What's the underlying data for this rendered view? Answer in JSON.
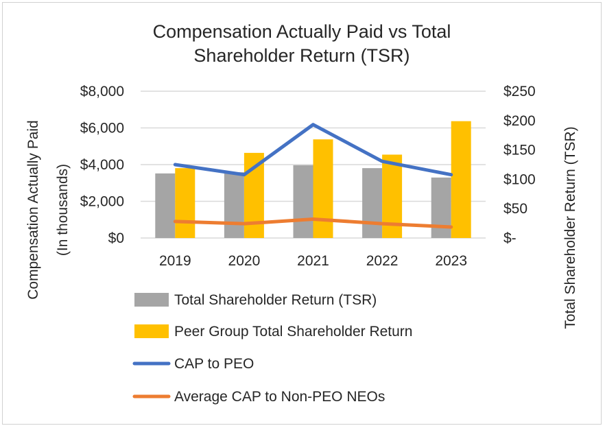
{
  "chart_data": {
    "type": "bar",
    "title_lines": [
      "Compensation Actually Paid vs Total",
      "Shareholder Return (TSR)"
    ],
    "categories": [
      "2019",
      "2020",
      "2021",
      "2022",
      "2023"
    ],
    "y_left": {
      "label_lines": [
        "Compensation Actually Paid",
        "(In thousands)"
      ],
      "range": [
        0,
        8000
      ],
      "ticks": [
        {
          "value": 0,
          "label": "$0"
        },
        {
          "value": 2000,
          "label": "$2,000"
        },
        {
          "value": 4000,
          "label": "$4,000"
        },
        {
          "value": 6000,
          "label": "$6,000"
        },
        {
          "value": 8000,
          "label": "$8,000"
        }
      ]
    },
    "y_right": {
      "label": "Total Shareholder Return (TSR)",
      "range": [
        0,
        250
      ],
      "ticks": [
        {
          "value": 0,
          "label": "$-"
        },
        {
          "value": 50,
          "label": "$50"
        },
        {
          "value": 100,
          "label": "$100"
        },
        {
          "value": 150,
          "label": "$150"
        },
        {
          "value": 200,
          "label": "$200"
        },
        {
          "value": 250,
          "label": "$250"
        }
      ]
    },
    "gridlines": true,
    "legend_position": "bottom",
    "series": [
      {
        "name": "Total Shareholder Return (TSR)",
        "kind": "bar",
        "axis": "right",
        "color": "#a5a5a5",
        "values": [
          110,
          112,
          124,
          119,
          103
        ]
      },
      {
        "name": "Peer Group Total Shareholder Return",
        "kind": "bar",
        "axis": "right",
        "color": "#ffc000",
        "values": [
          119,
          145,
          168,
          142,
          199
        ]
      },
      {
        "name": "CAP to PEO",
        "kind": "line",
        "axis": "left",
        "color": "#4472c4",
        "values": [
          4000,
          3450,
          6180,
          4180,
          3450
        ]
      },
      {
        "name": "Average CAP to Non-PEO NEOs",
        "kind": "line",
        "axis": "left",
        "color": "#ed7d31",
        "values": [
          900,
          780,
          1030,
          780,
          600
        ]
      }
    ]
  }
}
